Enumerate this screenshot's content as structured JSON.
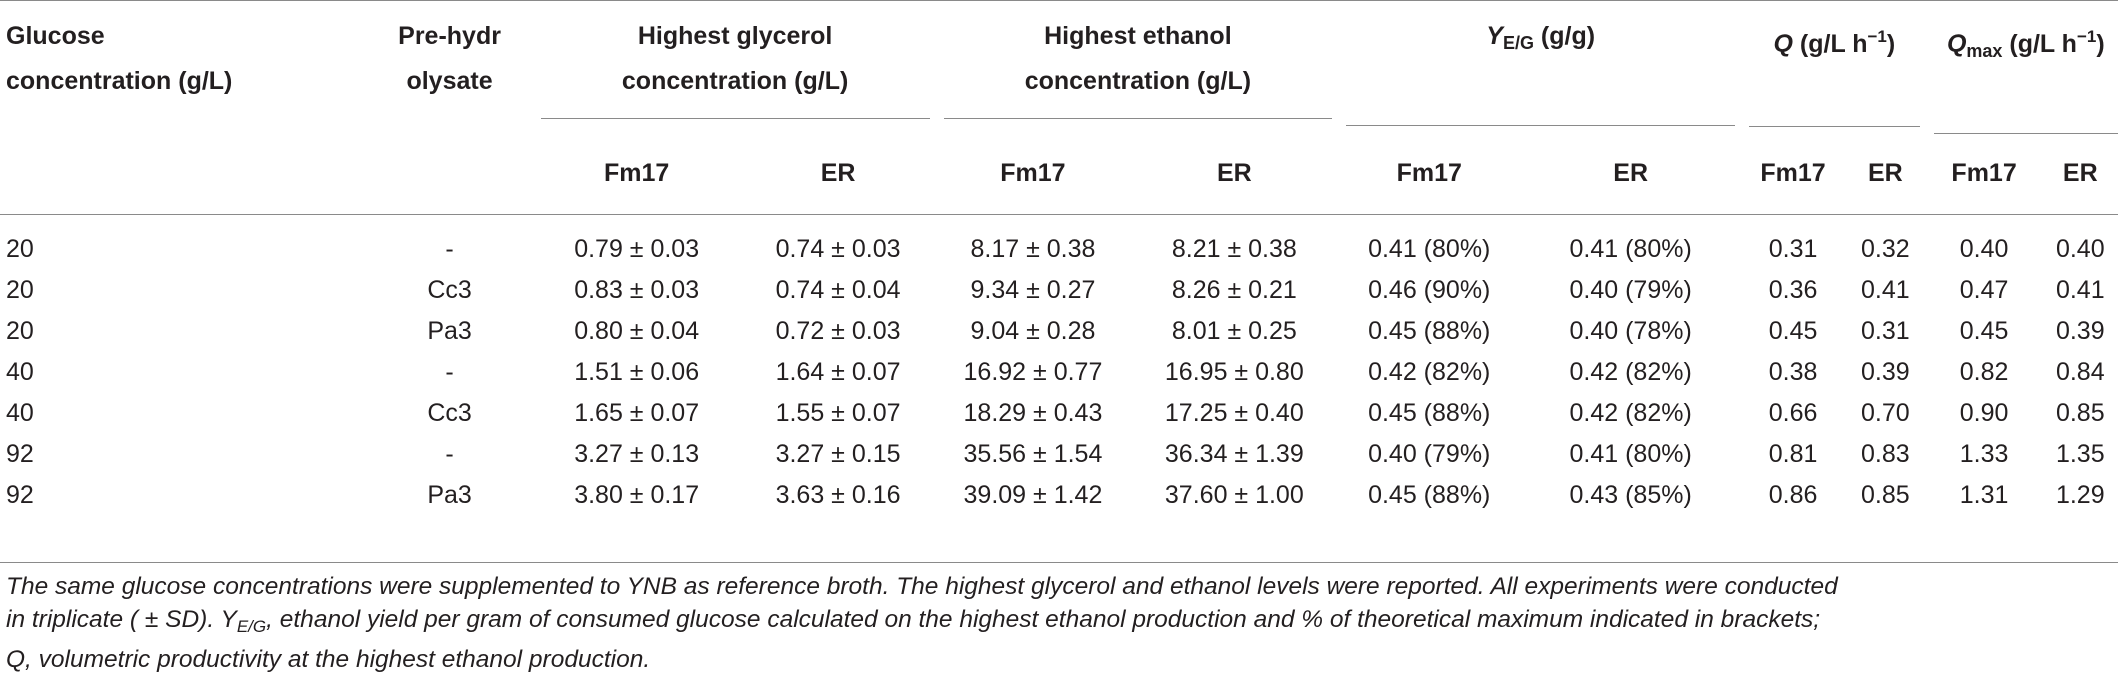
{
  "table": {
    "headers": {
      "glucose": "Glucose concentration (g/L)",
      "prehydrolysate": "Pre-hydrolysate",
      "glycerol": "Highest glycerol concentration (g/L)",
      "ethanol": "Highest ethanol concentration (g/L)",
      "yield_prefix": "Y",
      "yield_sub": "E/G",
      "yield_suffix": " (g/g)",
      "q_prefix": "Q",
      "q_suffix": " (g/L h",
      "q_sup": "−1",
      "q_close": ")",
      "qmax_prefix": "Q",
      "qmax_sub": "max",
      "qmax_suffix": " (g/L h",
      "qmax_sup": "−1",
      "qmax_close": ")"
    },
    "subheaders": [
      "Fm17",
      "ER",
      "Fm17",
      "ER",
      "Fm17",
      "ER",
      "Fm17",
      "ER",
      "Fm17",
      "ER"
    ],
    "rows": [
      [
        "20",
        "-",
        "0.79 ± 0.03",
        "0.74 ± 0.03",
        "8.17 ± 0.38",
        "8.21 ± 0.38",
        "0.41 (80%)",
        "0.41 (80%)",
        "0.31",
        "0.32",
        "0.40",
        "0.40"
      ],
      [
        "20",
        "Cc3",
        "0.83 ± 0.03",
        "0.74 ± 0.04",
        "9.34 ± 0.27",
        "8.26 ± 0.21",
        "0.46 (90%)",
        "0.40 (79%)",
        "0.36",
        "0.41",
        "0.47",
        "0.41"
      ],
      [
        "20",
        "Pa3",
        "0.80 ± 0.04",
        "0.72 ± 0.03",
        "9.04 ± 0.28",
        "8.01 ± 0.25",
        "0.45 (88%)",
        "0.40 (78%)",
        "0.45",
        "0.31",
        "0.45",
        "0.39"
      ],
      [
        "40",
        "-",
        "1.51 ± 0.06",
        "1.64 ± 0.07",
        "16.92 ± 0.77",
        "16.95 ± 0.80",
        "0.42 (82%)",
        "0.42 (82%)",
        "0.38",
        "0.39",
        "0.82",
        "0.84"
      ],
      [
        "40",
        "Cc3",
        "1.65 ± 0.07",
        "1.55 ± 0.07",
        "18.29 ± 0.43",
        "17.25 ± 0.40",
        "0.45 (88%)",
        "0.42 (82%)",
        "0.66",
        "0.70",
        "0.90",
        "0.85"
      ],
      [
        "92",
        "-",
        "3.27 ± 0.13",
        "3.27 ± 0.15",
        "35.56 ± 1.54",
        "36.34 ± 1.39",
        "0.40 (79%)",
        "0.41 (80%)",
        "0.81",
        "0.83",
        "1.33",
        "1.35"
      ],
      [
        "92",
        "Pa3",
        "3.80 ± 0.17",
        "3.63 ± 0.16",
        "39.09 ± 1.42",
        "37.60 ± 1.00",
        "0.45 (88%)",
        "0.43 (85%)",
        "0.86",
        "0.85",
        "1.31",
        "1.29"
      ]
    ]
  },
  "footnote": {
    "line1": "The same glucose concentrations were supplemented to YNB as reference broth. The highest glycerol and ethanol levels were reported. All experiments were conducted",
    "line2_a": "in triplicate ( ± SD). Y",
    "line2_sub": "E/G",
    "line2_b": ", ethanol yield per gram of consumed glucose calculated on the highest ethanol production and % of theoretical maximum indicated in brackets;",
    "line3": "Q, volumetric productivity at the highest ethanol production."
  }
}
